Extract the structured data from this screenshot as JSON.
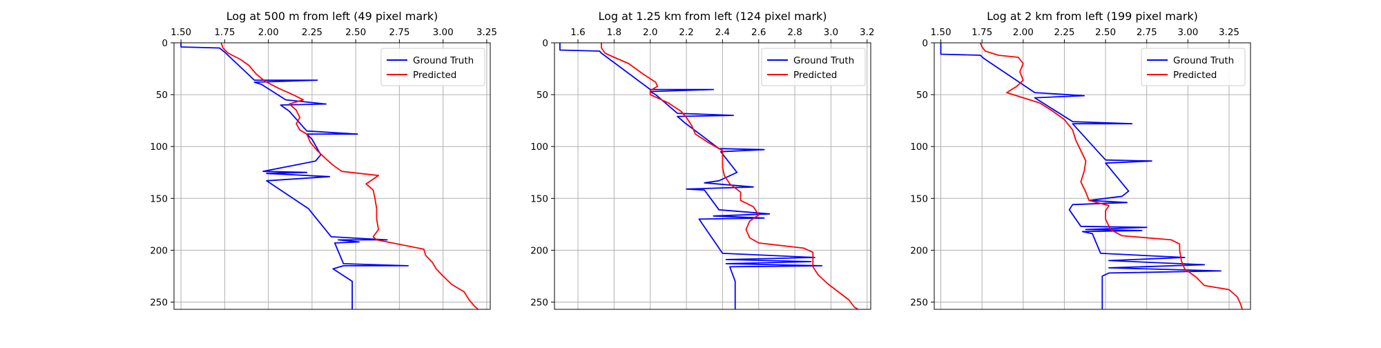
{
  "colors": {
    "ground_truth": "#0000ff",
    "predicted": "#ff0000",
    "grid": "#b0b0b0",
    "axis": "#000000"
  },
  "chart_data": [
    {
      "type": "line",
      "title": "Log at 500 m from left (49 pixel mark)",
      "xlim": [
        1.46,
        3.27
      ],
      "ylim": [
        257,
        0
      ],
      "x_axis_position": "top",
      "y_axis_inverted": true,
      "grid": true,
      "legend_position": "top-right",
      "xticks": [
        1.5,
        1.75,
        2.0,
        2.25,
        2.5,
        2.75,
        3.0,
        3.25
      ],
      "xtick_labels": [
        "1.50",
        "1.75",
        "2.00",
        "2.25",
        "2.50",
        "2.75",
        "3.00",
        "3.25"
      ],
      "yticks": [
        0,
        50,
        100,
        150,
        200,
        250
      ],
      "ytick_labels": [
        "0",
        "50",
        "100",
        "150",
        "200",
        "250"
      ],
      "series": [
        {
          "name": "Ground Truth",
          "color": "#0000ff",
          "points": [
            [
              1.5,
              0
            ],
            [
              1.5,
              4
            ],
            [
              1.72,
              5
            ],
            [
              1.75,
              9
            ],
            [
              1.92,
              36
            ],
            [
              2.28,
              36
            ],
            [
              1.92,
              38
            ],
            [
              1.96,
              40
            ],
            [
              2.1,
              55
            ],
            [
              2.33,
              59
            ],
            [
              2.07,
              60
            ],
            [
              2.12,
              66
            ],
            [
              2.22,
              85
            ],
            [
              2.51,
              88
            ],
            [
              2.22,
              88
            ],
            [
              2.25,
              93
            ],
            [
              2.3,
              108
            ],
            [
              2.27,
              114
            ],
            [
              2.15,
              118
            ],
            [
              1.97,
              124
            ],
            [
              2.22,
              125
            ],
            [
              1.99,
              126
            ],
            [
              2.35,
              129
            ],
            [
              1.99,
              133
            ],
            [
              2.23,
              160
            ],
            [
              2.36,
              187
            ],
            [
              2.68,
              190
            ],
            [
              2.4,
              190
            ],
            [
              2.52,
              192
            ],
            [
              2.38,
              193
            ],
            [
              2.43,
              213
            ],
            [
              2.8,
              215
            ],
            [
              2.43,
              215
            ],
            [
              2.37,
              218
            ],
            [
              2.48,
              230
            ],
            [
              2.48,
              257
            ]
          ]
        },
        {
          "name": "Predicted",
          "color": "#ff0000",
          "points": [
            [
              1.73,
              0
            ],
            [
              1.74,
              5
            ],
            [
              1.77,
              10
            ],
            [
              1.84,
              16
            ],
            [
              1.89,
              22
            ],
            [
              1.93,
              30
            ],
            [
              1.98,
              37
            ],
            [
              2.06,
              44
            ],
            [
              2.14,
              50
            ],
            [
              2.2,
              55
            ],
            [
              2.12,
              59
            ],
            [
              2.16,
              65
            ],
            [
              2.18,
              72
            ],
            [
              2.16,
              78
            ],
            [
              2.18,
              84
            ],
            [
              2.22,
              88
            ],
            [
              2.24,
              96
            ],
            [
              2.28,
              104
            ],
            [
              2.33,
              112
            ],
            [
              2.37,
              118
            ],
            [
              2.42,
              124
            ],
            [
              2.63,
              128
            ],
            [
              2.56,
              136
            ],
            [
              2.6,
              142
            ],
            [
              2.61,
              150
            ],
            [
              2.62,
              160
            ],
            [
              2.62,
              170
            ],
            [
              2.63,
              180
            ],
            [
              2.6,
              187
            ],
            [
              2.62,
              190
            ],
            [
              2.8,
              196
            ],
            [
              2.89,
              199
            ],
            [
              2.9,
              205
            ],
            [
              2.94,
              212
            ],
            [
              2.96,
              218
            ],
            [
              3.0,
              225
            ],
            [
              3.05,
              233
            ],
            [
              3.12,
              240
            ],
            [
              3.15,
              248
            ],
            [
              3.18,
              254
            ],
            [
              3.2,
              257
            ]
          ]
        }
      ]
    },
    {
      "type": "line",
      "title": "Log at 1.25 km from left (124 pixel mark)",
      "xlim": [
        1.47,
        3.22
      ],
      "ylim": [
        257,
        0
      ],
      "x_axis_position": "top",
      "y_axis_inverted": true,
      "grid": true,
      "legend_position": "top-right",
      "xticks": [
        1.6,
        1.8,
        2.0,
        2.2,
        2.4,
        2.6,
        2.8,
        3.0,
        3.2
      ],
      "xtick_labels": [
        "1.6",
        "1.8",
        "2.0",
        "2.2",
        "2.4",
        "2.6",
        "2.8",
        "3.0",
        "3.2"
      ],
      "yticks": [
        0,
        50,
        100,
        150,
        200,
        250
      ],
      "ytick_labels": [
        "0",
        "50",
        "100",
        "150",
        "200",
        "250"
      ],
      "series": [
        {
          "name": "Ground Truth",
          "color": "#0000ff",
          "points": [
            [
              1.5,
              0
            ],
            [
              1.5,
              7
            ],
            [
              1.72,
              8
            ],
            [
              1.73,
              10
            ],
            [
              2.0,
              45
            ],
            [
              2.35,
              45
            ],
            [
              2.0,
              47
            ],
            [
              2.03,
              50
            ],
            [
              2.15,
              68
            ],
            [
              2.46,
              70
            ],
            [
              2.15,
              71
            ],
            [
              2.19,
              77
            ],
            [
              2.38,
              102
            ],
            [
              2.63,
              103
            ],
            [
              2.39,
              105
            ],
            [
              2.48,
              125
            ],
            [
              2.38,
              133
            ],
            [
              2.3,
              135
            ],
            [
              2.57,
              139
            ],
            [
              2.2,
              141
            ],
            [
              2.3,
              142
            ],
            [
              2.38,
              161
            ],
            [
              2.66,
              165
            ],
            [
              2.35,
              167
            ],
            [
              2.63,
              169
            ],
            [
              2.27,
              170
            ],
            [
              2.4,
              203
            ],
            [
              2.91,
              207
            ],
            [
              2.42,
              209
            ],
            [
              2.89,
              211
            ],
            [
              2.42,
              213
            ],
            [
              2.95,
              215
            ],
            [
              2.44,
              216
            ],
            [
              2.47,
              230
            ],
            [
              2.47,
              257
            ]
          ]
        },
        {
          "name": "Predicted",
          "color": "#ff0000",
          "points": [
            [
              1.73,
              0
            ],
            [
              1.73,
              5
            ],
            [
              1.75,
              10
            ],
            [
              1.8,
              14
            ],
            [
              1.88,
              20
            ],
            [
              1.96,
              30
            ],
            [
              2.03,
              38
            ],
            [
              2.04,
              42
            ],
            [
              2.0,
              46
            ],
            [
              2.0,
              50
            ],
            [
              2.1,
              58
            ],
            [
              2.17,
              66
            ],
            [
              2.2,
              72
            ],
            [
              2.23,
              80
            ],
            [
              2.25,
              88
            ],
            [
              2.32,
              96
            ],
            [
              2.4,
              104
            ],
            [
              2.4,
              112
            ],
            [
              2.4,
              120
            ],
            [
              2.41,
              128
            ],
            [
              2.44,
              136
            ],
            [
              2.5,
              144
            ],
            [
              2.5,
              152
            ],
            [
              2.57,
              158
            ],
            [
              2.6,
              166
            ],
            [
              2.55,
              172
            ],
            [
              2.53,
              180
            ],
            [
              2.55,
              188
            ],
            [
              2.6,
              193
            ],
            [
              2.85,
              198
            ],
            [
              2.9,
              202
            ],
            [
              2.9,
              210
            ],
            [
              2.9,
              216
            ],
            [
              2.93,
              224
            ],
            [
              2.98,
              232
            ],
            [
              3.04,
              240
            ],
            [
              3.1,
              248
            ],
            [
              3.13,
              255
            ],
            [
              3.15,
              257
            ]
          ]
        }
      ]
    },
    {
      "type": "line",
      "title": "Log at 2 km from left (199 pixel mark)",
      "xlim": [
        1.46,
        3.38
      ],
      "ylim": [
        257,
        0
      ],
      "x_axis_position": "top",
      "y_axis_inverted": true,
      "grid": true,
      "legend_position": "top-right",
      "xticks": [
        1.5,
        1.75,
        2.0,
        2.25,
        2.5,
        2.75,
        3.0,
        3.25
      ],
      "xtick_labels": [
        "1.50",
        "1.75",
        "2.00",
        "2.25",
        "2.50",
        "2.75",
        "3.00",
        "3.25"
      ],
      "yticks": [
        0,
        50,
        100,
        150,
        200,
        250
      ],
      "ytick_labels": [
        "0",
        "50",
        "100",
        "150",
        "200",
        "250"
      ],
      "series": [
        {
          "name": "Ground Truth",
          "color": "#0000ff",
          "points": [
            [
              1.5,
              0
            ],
            [
              1.5,
              11
            ],
            [
              1.74,
              12
            ],
            [
              1.76,
              15
            ],
            [
              2.07,
              48
            ],
            [
              2.37,
              51
            ],
            [
              2.07,
              53
            ],
            [
              2.3,
              76
            ],
            [
              2.66,
              78
            ],
            [
              2.3,
              78
            ],
            [
              2.5,
              113
            ],
            [
              2.78,
              114
            ],
            [
              2.5,
              116
            ],
            [
              2.64,
              143
            ],
            [
              2.6,
              148
            ],
            [
              2.4,
              152
            ],
            [
              2.63,
              154
            ],
            [
              2.3,
              156
            ],
            [
              2.28,
              161
            ],
            [
              2.35,
              177
            ],
            [
              2.75,
              178
            ],
            [
              2.38,
              180
            ],
            [
              2.72,
              181
            ],
            [
              2.36,
              182
            ],
            [
              2.42,
              184
            ],
            [
              2.47,
              203
            ],
            [
              2.98,
              207
            ],
            [
              2.52,
              210
            ],
            [
              3.1,
              214
            ],
            [
              2.52,
              217
            ],
            [
              3.2,
              220
            ],
            [
              2.52,
              222
            ],
            [
              2.48,
              225
            ],
            [
              2.48,
              257
            ]
          ]
        },
        {
          "name": "Predicted",
          "color": "#ff0000",
          "points": [
            [
              1.74,
              0
            ],
            [
              1.75,
              4
            ],
            [
              1.77,
              8
            ],
            [
              1.85,
              12
            ],
            [
              1.97,
              14
            ],
            [
              2.0,
              20
            ],
            [
              1.98,
              28
            ],
            [
              2.0,
              36
            ],
            [
              1.96,
              42
            ],
            [
              1.9,
              48
            ],
            [
              1.98,
              52
            ],
            [
              2.1,
              58
            ],
            [
              2.18,
              66
            ],
            [
              2.25,
              74
            ],
            [
              2.3,
              84
            ],
            [
              2.32,
              94
            ],
            [
              2.35,
              104
            ],
            [
              2.38,
              114
            ],
            [
              2.37,
              124
            ],
            [
              2.35,
              134
            ],
            [
              2.38,
              144
            ],
            [
              2.4,
              152
            ],
            [
              2.52,
              157
            ],
            [
              2.5,
              162
            ],
            [
              2.5,
              170
            ],
            [
              2.53,
              180
            ],
            [
              2.6,
              186
            ],
            [
              2.9,
              190
            ],
            [
              2.95,
              194
            ],
            [
              2.95,
              200
            ],
            [
              2.96,
              210
            ],
            [
              2.98,
              218
            ],
            [
              3.05,
              226
            ],
            [
              3.1,
              234
            ],
            [
              3.25,
              238
            ],
            [
              3.3,
              245
            ],
            [
              3.32,
              252
            ],
            [
              3.33,
              257
            ]
          ]
        }
      ]
    }
  ]
}
